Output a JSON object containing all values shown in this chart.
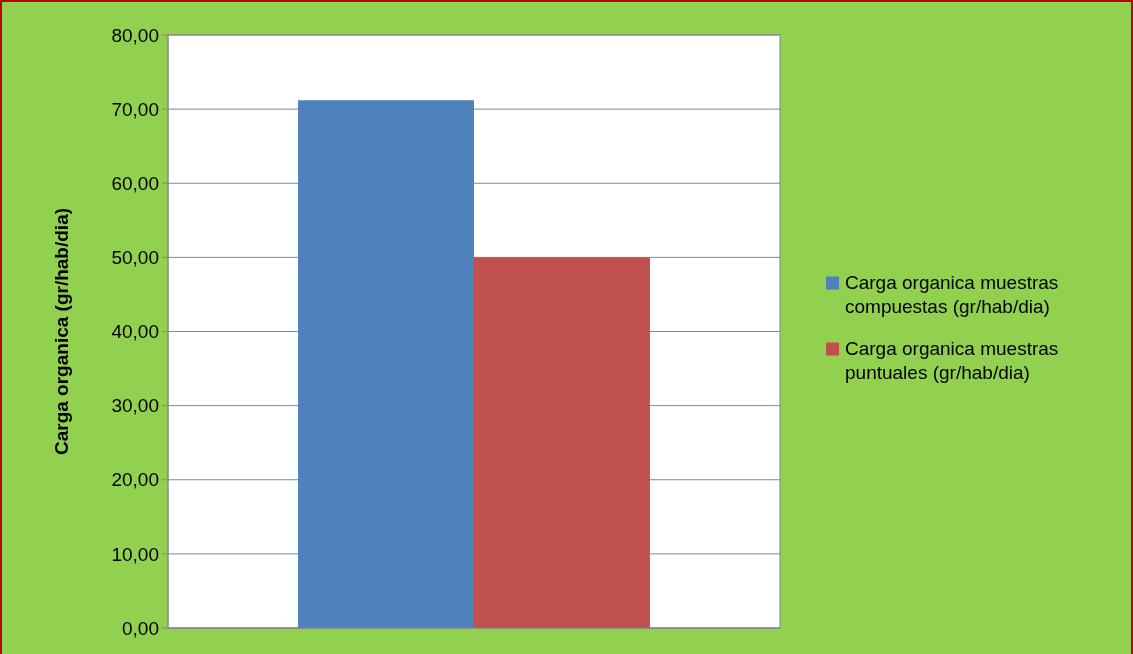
{
  "chart_data": {
    "type": "bar",
    "ylabel": "Carga organica (gr/hab/dia)",
    "categories": [
      null
    ],
    "series": [
      {
        "name": "Carga organica muestras compuestas (gr/hab/dia)",
        "color": "#4f81bd",
        "values": [
          71.2
        ]
      },
      {
        "name": "Carga organica muestras puntuales (gr/hab/dia)",
        "color": "#c0504d",
        "values": [
          50.0
        ]
      }
    ],
    "ylim": [
      0,
      80
    ],
    "yticks": [
      {
        "value": 0,
        "label": "0,00"
      },
      {
        "value": 10,
        "label": "10,00"
      },
      {
        "value": 20,
        "label": "20,00"
      },
      {
        "value": 30,
        "label": "30,00"
      },
      {
        "value": 40,
        "label": "40,00"
      },
      {
        "value": 50,
        "label": "50,00"
      },
      {
        "value": 60,
        "label": "60,00"
      },
      {
        "value": 70,
        "label": "70,00"
      },
      {
        "value": 80,
        "label": "80,00"
      }
    ],
    "grid": "y",
    "legend": "right"
  }
}
